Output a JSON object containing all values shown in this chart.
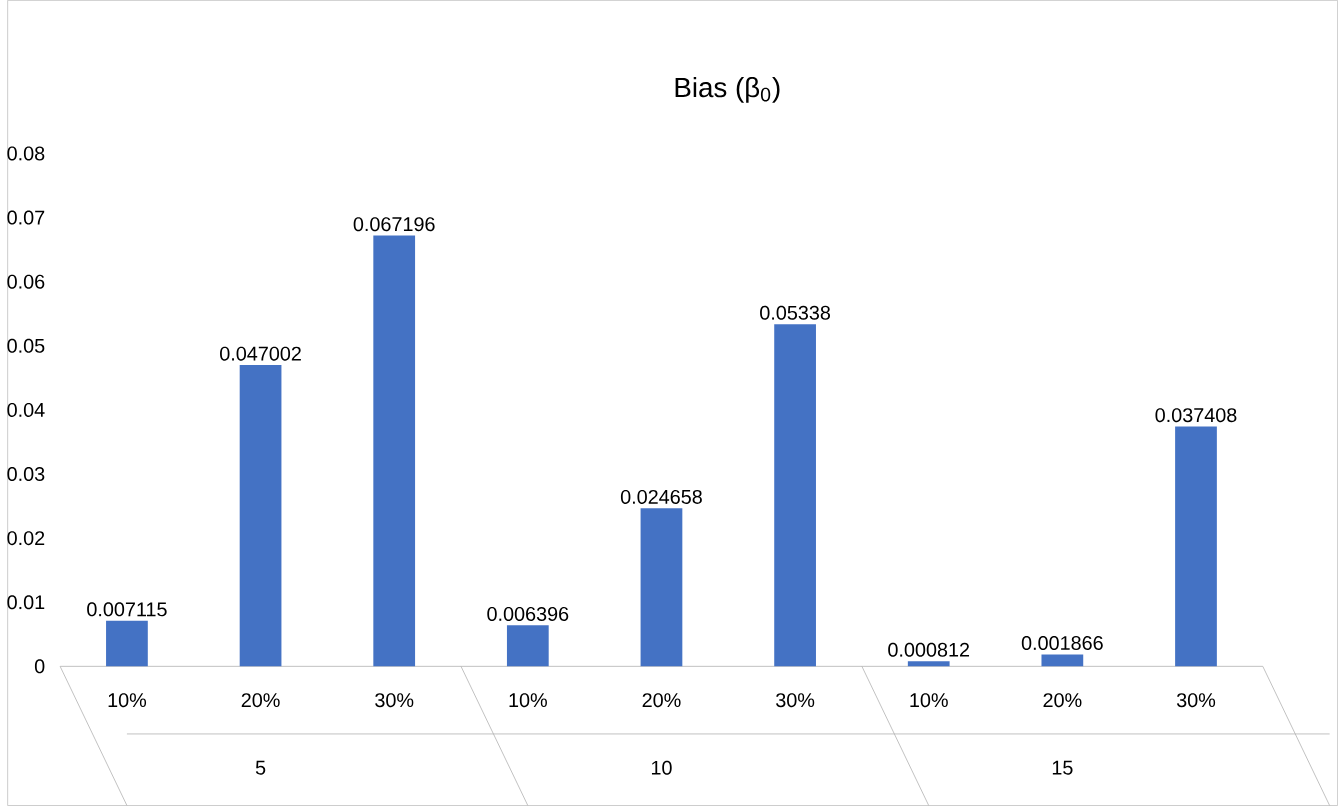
{
  "chart_data": {
    "type": "bar",
    "title": "Bias (β$_{0}$)",
    "categories": [
      "10%",
      "20%",
      "30%",
      "10%",
      "20%",
      "30%",
      "10%",
      "20%",
      "30%"
    ],
    "values": [
      0.007115,
      0.047002,
      0.067196,
      0.006396,
      0.024658,
      0.05338,
      0.000812,
      0.001866,
      0.037408
    ],
    "color": "#4472c4",
    "ylim": [
      0,
      0.08
    ],
    "yticks": [
      0,
      0.01,
      0.02,
      0.03,
      0.04,
      0.05,
      0.06,
      0.07,
      0.08
    ],
    "data_labels": true,
    "grid": false,
    "annotations": [
      "5",
      "10",
      "15"
    ]
  }
}
